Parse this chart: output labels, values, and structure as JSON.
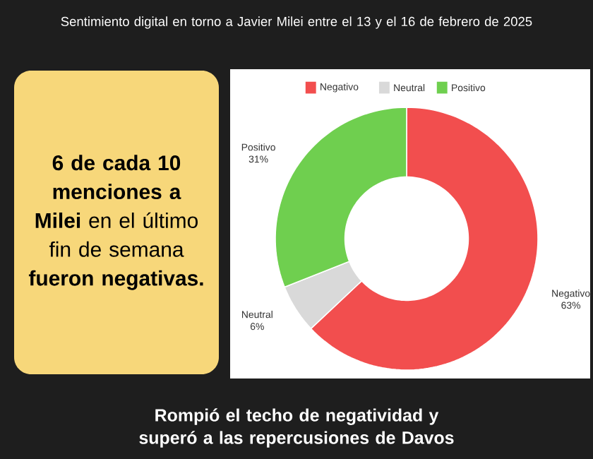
{
  "chart_data": {
    "type": "donut",
    "title": "Sentimiento digital en torno a Javier Milei entre el 13 y el 16 de febrero de 2025",
    "categories": [
      "Negativo",
      "Neutral",
      "Positivo"
    ],
    "values": [
      63,
      6,
      31
    ],
    "colors": [
      "#f24e4e",
      "#d9d9d9",
      "#6fcf4f"
    ],
    "value_labels": [
      "63%",
      "6%",
      "31%"
    ],
    "legend": "top",
    "annotations": [
      "**6 de cada 10 menciones a Milei** en el último fin de semana **fueron negativas.**",
      "Rompió el techo de negatividad y superó a las repercusiones de Davos"
    ]
  }
}
